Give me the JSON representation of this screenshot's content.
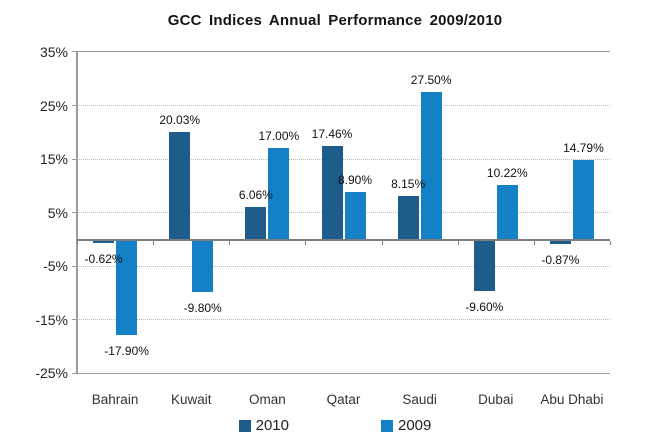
{
  "title": "GCC Indices Annual Performance 2009/2010",
  "chart_data": {
    "type": "bar",
    "title": "GCC Indices Annual Performance 2009/2010",
    "categories": [
      "Bahrain",
      "Kuwait",
      "Oman",
      "Qatar",
      "Saudi",
      "Dubai",
      "Abu Dhabi"
    ],
    "series": [
      {
        "name": "2010",
        "color": "#1E5C8C",
        "values": [
          -0.62,
          20.03,
          6.06,
          17.46,
          8.15,
          -9.6,
          -0.87
        ],
        "labels": [
          "-0.62%",
          "20.03%",
          "6.06%",
          "17.46%",
          "8.15%",
          "-9.60%",
          "-0.87%"
        ]
      },
      {
        "name": "2009",
        "color": "#1480C6",
        "values": [
          -17.9,
          -9.8,
          17.0,
          8.9,
          27.5,
          10.22,
          14.79
        ],
        "labels": [
          "-17.90%",
          "-9.80%",
          "17.00%",
          "8.90%",
          "27.50%",
          "10.22%",
          "14.79%"
        ]
      }
    ],
    "y_axis": {
      "tick_labels": [
        "35%",
        "25%",
        "15%",
        "5%",
        "-5%",
        "-15%",
        "-25%"
      ],
      "tick_values": [
        35,
        25,
        15,
        5,
        -5,
        -15,
        -25
      ],
      "min": -25,
      "max": 35
    },
    "legend": [
      {
        "label": "2010",
        "color": "#1E5C8C"
      },
      {
        "label": "2009",
        "color": "#1480C6"
      }
    ],
    "grid": true,
    "legend_position": "bottom"
  }
}
